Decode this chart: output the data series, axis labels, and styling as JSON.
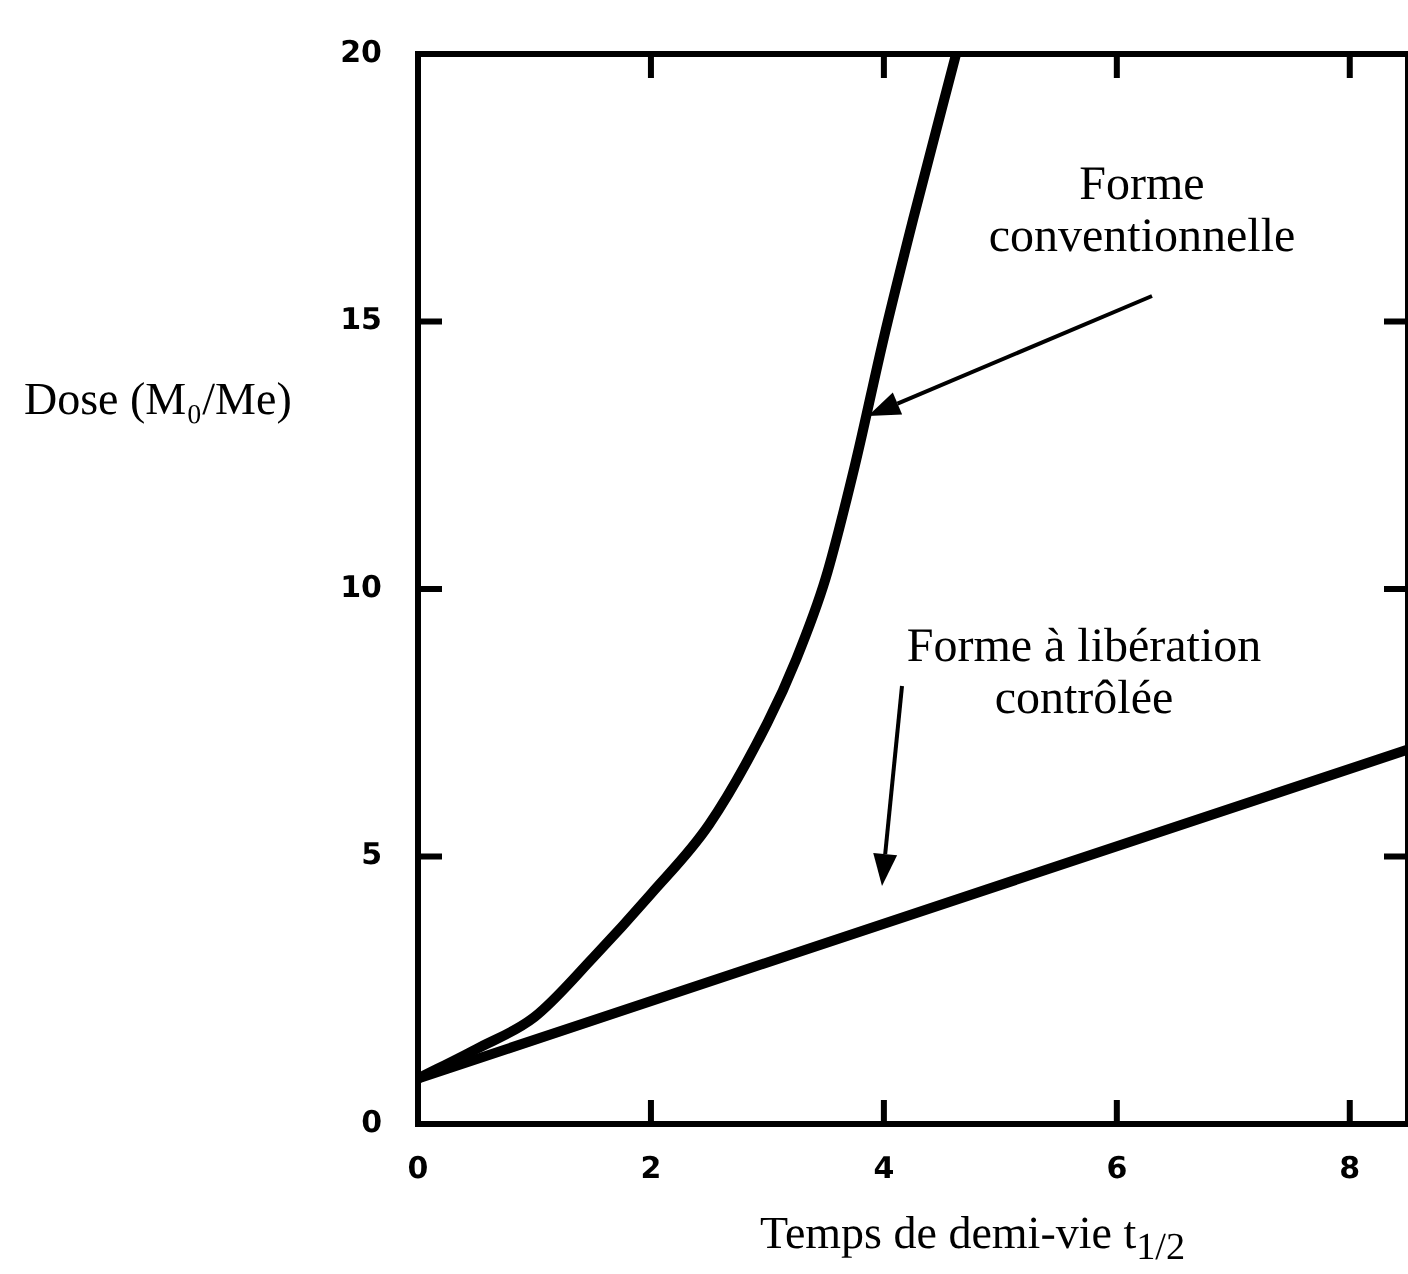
{
  "chart_data": {
    "type": "line",
    "xlabel": "Temps de demi-vie t$_{1/2}$",
    "ylabel": "Dose (M₀/Me)",
    "xlim": [
      0,
      8.5
    ],
    "ylim": [
      0,
      20
    ],
    "xticks": [
      0,
      2,
      4,
      6,
      8
    ],
    "yticks": [
      0,
      5,
      10,
      15,
      20
    ],
    "grid": false,
    "legend": false,
    "marker": "none",
    "line_style": "solid",
    "series": [
      {
        "color": "#000000",
        "x": [
          0,
          0.5,
          1,
          1.5,
          2,
          2.5,
          3,
          3.25,
          3.5,
          3.75,
          4,
          4.25,
          4.62
        ],
        "values": [
          0.85,
          1.4,
          2.0,
          3.1,
          4.3,
          5.6,
          7.5,
          8.7,
          10.2,
          12.3,
          14.7,
          16.9,
          20
        ]
      },
      {
        "color": "#000000",
        "x": [
          0,
          8.5
        ],
        "values": [
          0.85,
          7.0
        ]
      }
    ],
    "annotations": [
      "Forme\nconventionnelle",
      "Forme à libération\ncontrôlée"
    ]
  }
}
